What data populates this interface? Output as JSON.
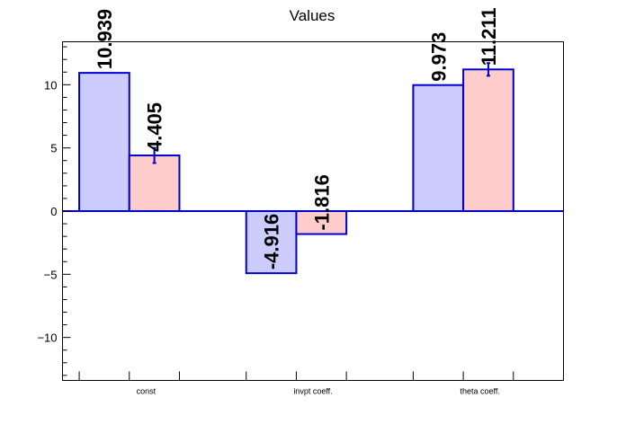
{
  "chart_data": {
    "type": "bar",
    "title": "Values",
    "categories": [
      "const",
      "invpt coeff.",
      "theta coeff."
    ],
    "series": [
      {
        "values": [
          10.939,
          -4.916,
          9.973
        ],
        "labels": [
          "10.939",
          "-4.916",
          "9.973"
        ],
        "errors": [
          0,
          0,
          0
        ],
        "color": "#ccccff"
      },
      {
        "values": [
          4.405,
          -1.816,
          11.211
        ],
        "labels": [
          "4.405",
          "-1.816",
          "11.211"
        ],
        "errors": [
          0.6,
          0,
          0.5
        ],
        "color": "#ffcccc"
      }
    ],
    "ylim": [
      -13.4,
      13.4
    ],
    "yticks": [
      -10,
      -5,
      0,
      5,
      10
    ],
    "ytick_labels": [
      "−10",
      "−5",
      "0",
      "5",
      "10"
    ],
    "grid": false,
    "legend": false,
    "colors": {
      "edge": "#0000cc",
      "axis": "#000000"
    }
  }
}
